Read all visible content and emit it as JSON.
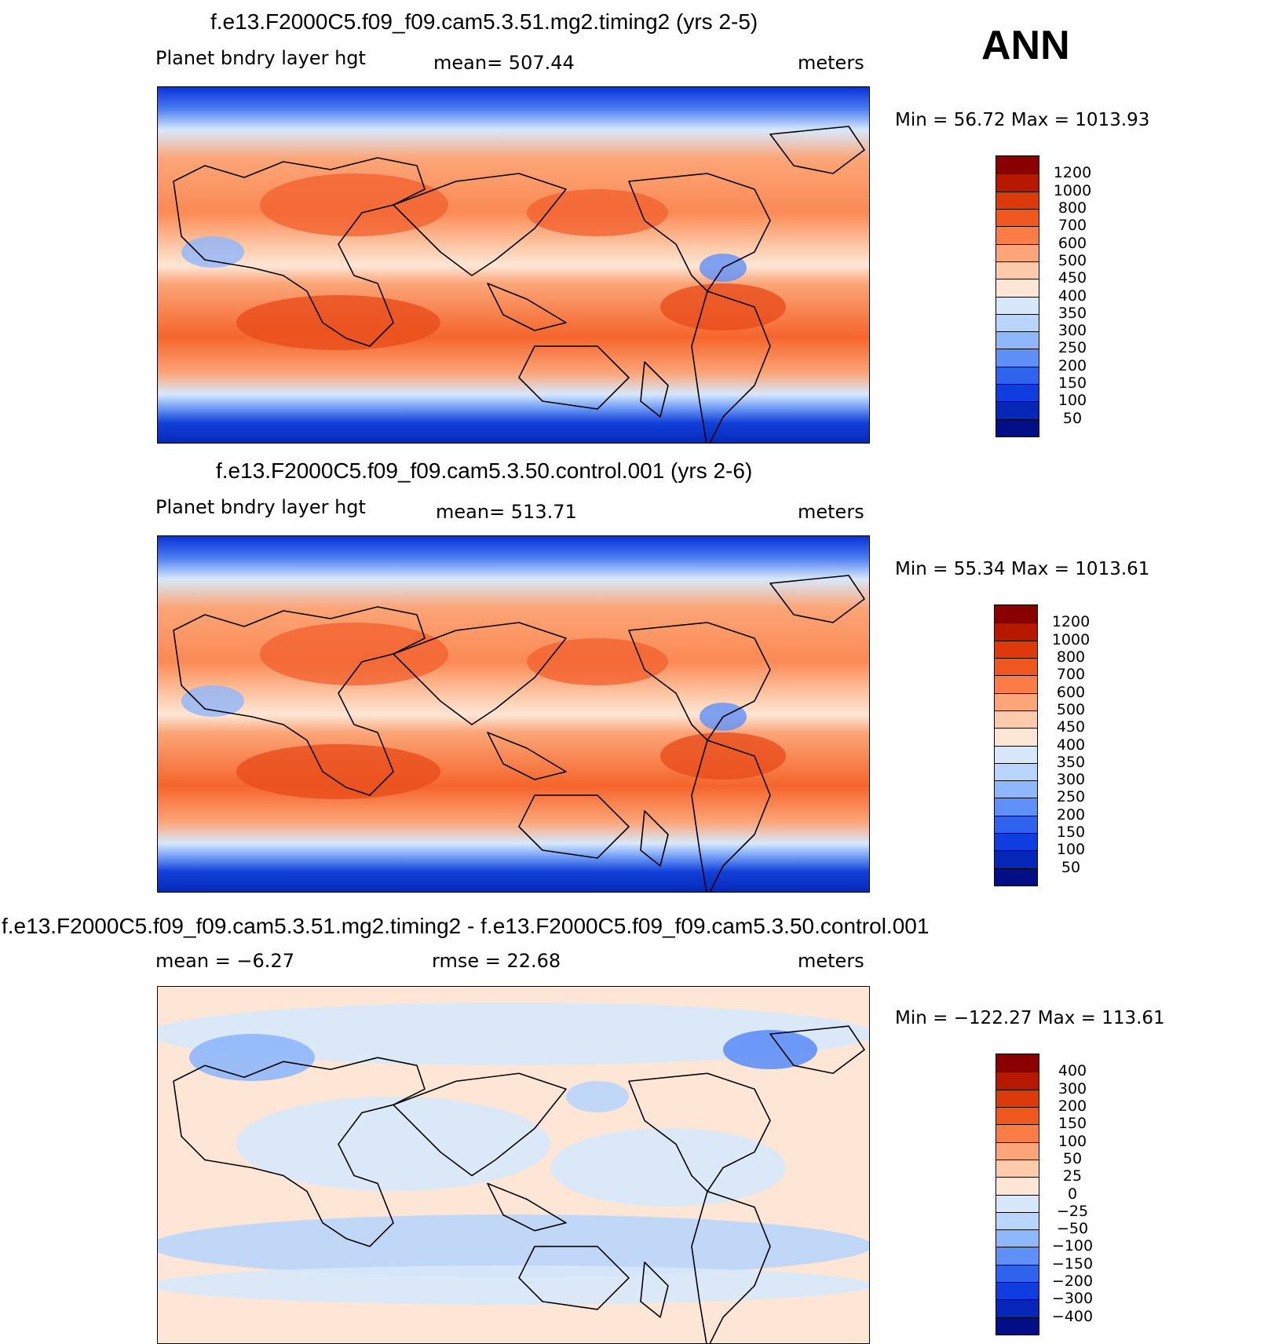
{
  "season": "ANN",
  "panels": [
    {
      "title": "f.e13.F2000C5.f09_f09.cam5.3.51.mg2.timing2 (yrs 2-5)",
      "left_label": "Planet bndry layer hgt",
      "center_label": "mean=  507.44",
      "right_label": "meters",
      "minmax": "Min =   56.72 Max  =  1013.93",
      "field": "absolute",
      "colorbar": {
        "colors": [
          "#8a0000",
          "#b81800",
          "#dc3a0a",
          "#f0571e",
          "#fb7c46",
          "#fca578",
          "#fdcbab",
          "#fde6d6",
          "#d7e8fb",
          "#b9d5fb",
          "#8fb7fb",
          "#5f90f7",
          "#2f63ee",
          "#0f3ddf",
          "#0626b8",
          "#020d88"
        ],
        "ticks": [
          "1200",
          "1000",
          "800",
          "700",
          "600",
          "500",
          "450",
          "400",
          "350",
          "300",
          "250",
          "200",
          "150",
          "100",
          "50"
        ]
      }
    },
    {
      "title": "f.e13.F2000C5.f09_f09.cam5.3.50.control.001 (yrs 2-6)",
      "left_label": "Planet bndry layer hgt",
      "center_label": "mean=  513.71",
      "right_label": "meters",
      "minmax": "Min =   55.34 Max  =  1013.61",
      "field": "absolute",
      "colorbar": {
        "colors": [
          "#8a0000",
          "#b81800",
          "#dc3a0a",
          "#f0571e",
          "#fb7c46",
          "#fca578",
          "#fdcbab",
          "#fde6d6",
          "#d7e8fb",
          "#b9d5fb",
          "#8fb7fb",
          "#5f90f7",
          "#2f63ee",
          "#0f3ddf",
          "#0626b8",
          "#020d88"
        ],
        "ticks": [
          "1200",
          "1000",
          "800",
          "700",
          "600",
          "500",
          "450",
          "400",
          "350",
          "300",
          "250",
          "200",
          "150",
          "100",
          "50"
        ]
      }
    },
    {
      "title": "f.e13.F2000C5.f09_f09.cam5.3.51.mg2.timing2 - f.e13.F2000C5.f09_f09.cam5.3.50.control.001",
      "left_label": "mean =   −6.27",
      "center_label": "rmse =   22.68",
      "right_label": "meters",
      "minmax": "Min = −122.27 Max  =  113.61",
      "field": "difference",
      "colorbar": {
        "colors": [
          "#8a0000",
          "#b81800",
          "#dc3a0a",
          "#f0571e",
          "#fb7c46",
          "#fca578",
          "#fdcbab",
          "#fde6d6",
          "#d7e8fb",
          "#b9d5fb",
          "#8fb7fb",
          "#5f90f7",
          "#2f63ee",
          "#0f3ddf",
          "#0626b8",
          "#020d88"
        ],
        "ticks": [
          "400",
          "300",
          "200",
          "150",
          "100",
          "50",
          "25",
          "0",
          "−25",
          "−50",
          "−100",
          "−150",
          "−200",
          "−300",
          "−400"
        ]
      }
    }
  ]
}
